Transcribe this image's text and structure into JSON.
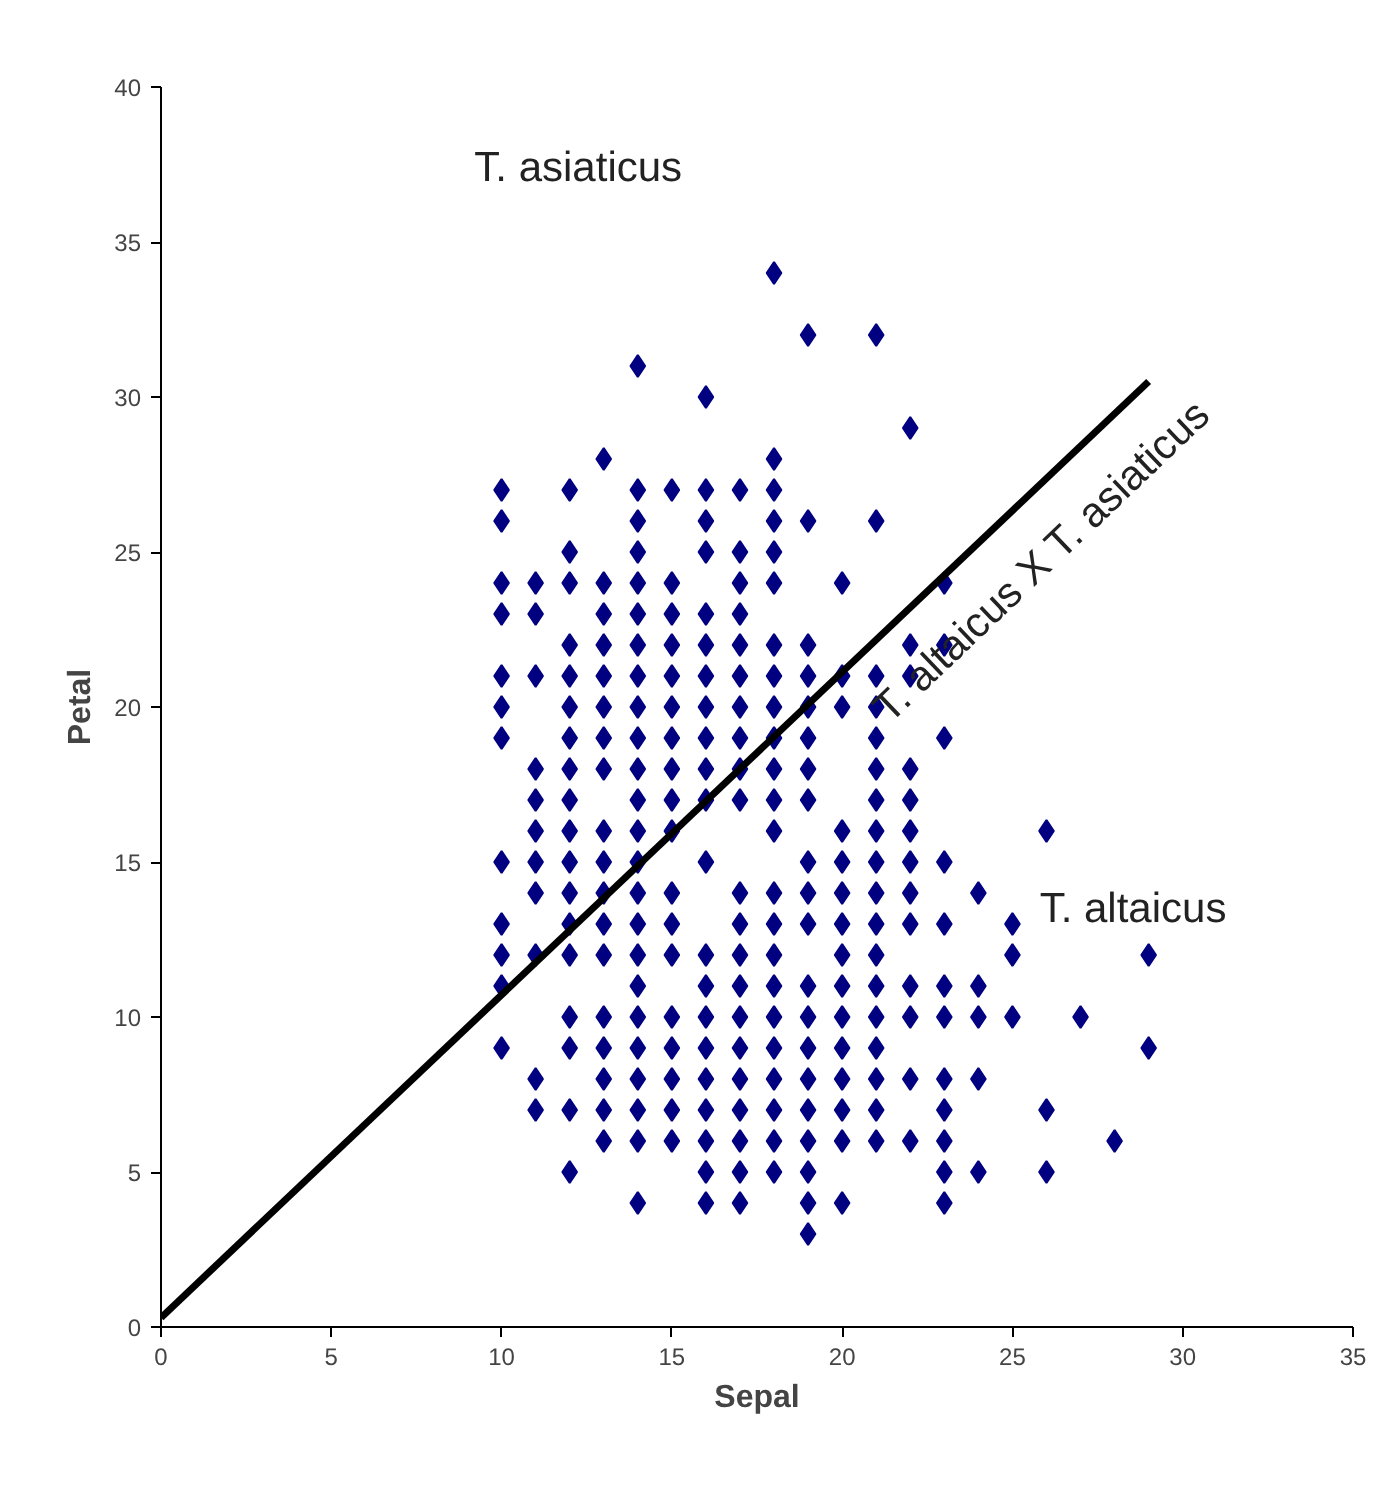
{
  "chart_data": {
    "type": "scatter",
    "xlabel": "Sepal",
    "ylabel": "Petal",
    "xlim": [
      0,
      35
    ],
    "ylim": [
      0,
      40
    ],
    "xticks": [
      0,
      5,
      10,
      15,
      20,
      25,
      30,
      35
    ],
    "yticks": [
      0,
      5,
      10,
      15,
      20,
      25,
      30,
      35,
      40
    ],
    "annotations": [
      "T. asiaticus",
      "T. altaicus X T. asiaticus",
      "T. altaicus"
    ],
    "series": [
      {
        "color": "#000080",
        "marker": "diamond",
        "x": [
          18,
          19,
          21,
          14,
          16,
          22,
          13,
          18,
          10,
          12,
          14,
          15,
          16,
          17,
          18,
          10,
          14,
          16,
          18,
          19,
          21,
          12,
          14,
          16,
          17,
          18,
          10,
          11,
          12,
          13,
          14,
          15,
          17,
          18,
          20,
          23,
          10,
          11,
          13,
          14,
          15,
          16,
          17,
          12,
          13,
          14,
          15,
          16,
          17,
          18,
          19,
          22,
          23,
          10,
          11,
          12,
          13,
          14,
          15,
          16,
          17,
          18,
          19,
          20,
          21,
          22,
          10,
          12,
          13,
          14,
          15,
          16,
          17,
          18,
          19,
          20,
          21,
          10,
          12,
          13,
          14,
          15,
          16,
          17,
          18,
          19,
          21,
          23,
          11,
          12,
          13,
          14,
          15,
          16,
          17,
          18,
          19,
          21,
          22,
          11,
          12,
          14,
          15,
          16,
          17,
          18,
          19,
          21,
          22,
          11,
          12,
          13,
          14,
          15,
          18,
          20,
          21,
          22,
          26,
          10,
          11,
          12,
          13,
          14,
          16,
          19,
          20,
          21,
          22,
          23,
          11,
          12,
          13,
          14,
          15,
          17,
          18,
          19,
          20,
          21,
          22,
          24,
          10,
          12,
          13,
          14,
          15,
          17,
          18,
          19,
          20,
          21,
          22,
          23,
          25,
          10,
          11,
          12,
          13,
          14,
          15,
          16,
          17,
          18,
          20,
          21,
          25,
          29,
          10,
          14,
          16,
          17,
          18,
          19,
          20,
          21,
          22,
          23,
          24,
          12,
          13,
          14,
          15,
          16,
          17,
          18,
          19,
          20,
          21,
          22,
          23,
          24,
          25,
          27,
          10,
          12,
          13,
          14,
          15,
          16,
          17,
          18,
          19,
          20,
          21,
          29,
          11,
          13,
          14,
          15,
          16,
          17,
          18,
          19,
          20,
          21,
          22,
          23,
          24,
          11,
          12,
          13,
          14,
          15,
          16,
          17,
          18,
          19,
          20,
          21,
          23,
          26,
          13,
          14,
          15,
          16,
          17,
          18,
          19,
          20,
          21,
          22,
          23,
          28,
          12,
          16,
          17,
          18,
          19,
          23,
          24,
          26,
          14,
          16,
          17,
          19,
          20,
          23,
          19
        ],
        "values": [
          34,
          32,
          32,
          31,
          30,
          29,
          28,
          28,
          27,
          27,
          27,
          27,
          27,
          27,
          27,
          26,
          26,
          26,
          26,
          26,
          26,
          25,
          25,
          25,
          25,
          25,
          24,
          24,
          24,
          24,
          24,
          24,
          24,
          24,
          24,
          24,
          23,
          23,
          23,
          23,
          23,
          23,
          23,
          22,
          22,
          22,
          22,
          22,
          22,
          22,
          22,
          22,
          22,
          21,
          21,
          21,
          21,
          21,
          21,
          21,
          21,
          21,
          21,
          21,
          21,
          21,
          20,
          20,
          20,
          20,
          20,
          20,
          20,
          20,
          20,
          20,
          20,
          19,
          19,
          19,
          19,
          19,
          19,
          19,
          19,
          19,
          19,
          19,
          18,
          18,
          18,
          18,
          18,
          18,
          18,
          18,
          18,
          18,
          18,
          17,
          17,
          17,
          17,
          17,
          17,
          17,
          17,
          17,
          17,
          16,
          16,
          16,
          16,
          16,
          16,
          16,
          16,
          16,
          16,
          15,
          15,
          15,
          15,
          15,
          15,
          15,
          15,
          15,
          15,
          15,
          14,
          14,
          14,
          14,
          14,
          14,
          14,
          14,
          14,
          14,
          14,
          14,
          13,
          13,
          13,
          13,
          13,
          13,
          13,
          13,
          13,
          13,
          13,
          13,
          13,
          12,
          12,
          12,
          12,
          12,
          12,
          12,
          12,
          12,
          12,
          12,
          12,
          12,
          11,
          11,
          11,
          11,
          11,
          11,
          11,
          11,
          11,
          11,
          11,
          10,
          10,
          10,
          10,
          10,
          10,
          10,
          10,
          10,
          10,
          10,
          10,
          10,
          10,
          10,
          9,
          9,
          9,
          9,
          9,
          9,
          9,
          9,
          9,
          9,
          9,
          9,
          8,
          8,
          8,
          8,
          8,
          8,
          8,
          8,
          8,
          8,
          8,
          8,
          8,
          7,
          7,
          7,
          7,
          7,
          7,
          7,
          7,
          7,
          7,
          7,
          7,
          7,
          6,
          6,
          6,
          6,
          6,
          6,
          6,
          6,
          6,
          6,
          6,
          6,
          5,
          5,
          5,
          5,
          5,
          5,
          5,
          5,
          4,
          4,
          4,
          4,
          4,
          4,
          3
        ]
      },
      {
        "type": "line",
        "color": "#000000",
        "x": [
          0,
          29
        ],
        "values": [
          0.3,
          30.5
        ]
      }
    ]
  }
}
